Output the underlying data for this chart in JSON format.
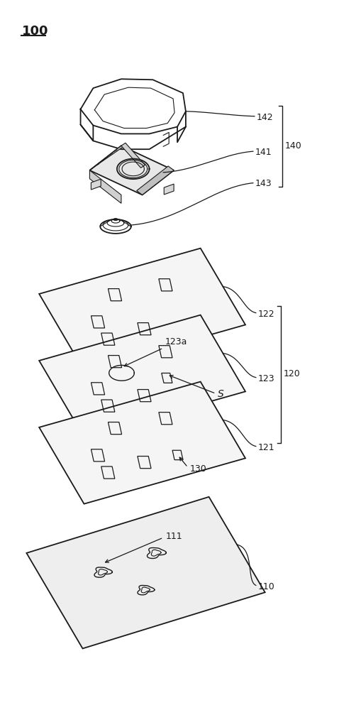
{
  "bg_color": "#ffffff",
  "line_color": "#1a1a1a",
  "fig_width": 5.09,
  "fig_height": 10.0,
  "labels": {
    "100": [
      28,
      968,
      13
    ],
    "142": [
      368,
      840,
      9
    ],
    "141": [
      368,
      790,
      9
    ],
    "140": [
      390,
      815,
      9
    ],
    "143": [
      368,
      745,
      9
    ],
    "122": [
      375,
      545,
      9
    ],
    "123a": [
      248,
      610,
      9
    ],
    "123": [
      375,
      490,
      9
    ],
    "120": [
      415,
      515,
      9
    ],
    "S": [
      310,
      460,
      9
    ],
    "121": [
      375,
      390,
      9
    ],
    "130": [
      280,
      360,
      9
    ],
    "111": [
      240,
      220,
      9
    ],
    "110": [
      375,
      175,
      9
    ]
  }
}
